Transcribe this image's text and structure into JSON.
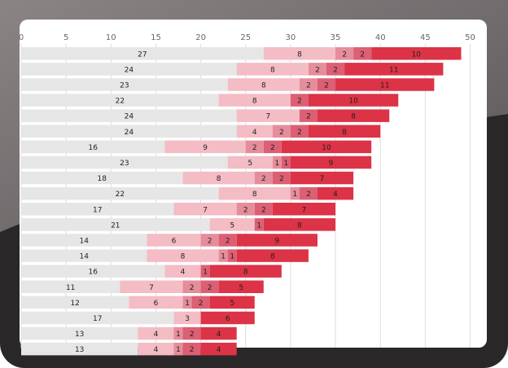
{
  "chart_data": {
    "type": "bar",
    "orientation": "horizontal",
    "stacked": true,
    "xlim": [
      0,
      50
    ],
    "x_ticks": [
      "0",
      "5",
      "10",
      "15",
      "20",
      "25",
      "30",
      "35",
      "40",
      "45",
      "50"
    ],
    "grid": true,
    "legend": "none",
    "series": [
      {
        "color": "#e6e6e6",
        "values": [
          27,
          24,
          23,
          22,
          24,
          24,
          16,
          23,
          18,
          22,
          17,
          21,
          14,
          14,
          16,
          11,
          12,
          17,
          13,
          13
        ]
      },
      {
        "color": "#f4bcc4",
        "values": [
          8,
          8,
          8,
          8,
          7,
          4,
          9,
          5,
          8,
          8,
          7,
          5,
          6,
          8,
          4,
          7,
          6,
          3,
          4,
          4
        ]
      },
      {
        "color": "#e58d9b",
        "values": [
          2,
          2,
          2,
          0,
          0,
          2,
          2,
          1,
          2,
          1,
          2,
          0,
          2,
          1,
          0,
          2,
          1,
          0,
          1,
          1
        ]
      },
      {
        "color": "#dc5f73",
        "values": [
          2,
          2,
          2,
          2,
          2,
          2,
          2,
          1,
          2,
          2,
          2,
          1,
          2,
          1,
          1,
          2,
          2,
          0,
          2,
          2
        ]
      },
      {
        "color": "#dc3347",
        "values": [
          10,
          11,
          11,
          10,
          8,
          8,
          10,
          9,
          7,
          4,
          7,
          8,
          9,
          8,
          8,
          5,
          5,
          6,
          4,
          4
        ]
      }
    ]
  }
}
